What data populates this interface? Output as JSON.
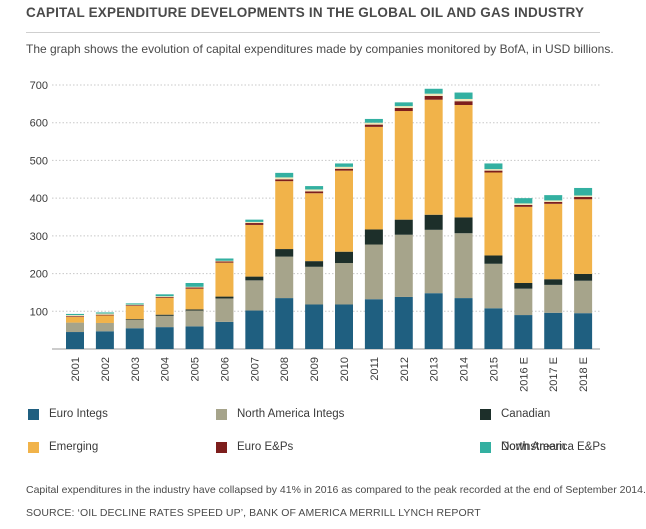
{
  "header": {
    "title": "CAPITAL EXPENDITURE DEVELOPMENTS IN THE GLOBAL OIL AND GAS INDUSTRY",
    "subtitle": "The graph shows the evolution of capital expenditures made by companies monitored by BofA, in USD billions."
  },
  "footer": {
    "note": "Capital expenditures in the industry have collapsed by 41% in 2016 as compared to the peak recorded at the end of September 2014.",
    "source": "SOURCE: ‘OIL DECLINE RATES SPEED UP’, BANK OF AMERICA MERRILL LYNCH REPORT"
  },
  "chart_data": {
    "type": "bar",
    "stacked": true,
    "title": "",
    "xlabel": "",
    "ylabel": "",
    "ylim": [
      0,
      700
    ],
    "yticks": [
      100,
      200,
      300,
      400,
      500,
      600,
      700
    ],
    "grid": true,
    "legend_position": "bottom",
    "categories": [
      "2001",
      "2002",
      "2003",
      "2004",
      "2005",
      "2006",
      "2007",
      "2008",
      "2009",
      "2010",
      "2011",
      "2012",
      "2013",
      "2014",
      "2015",
      "2016 E",
      "2017 E",
      "2018 E"
    ],
    "series": [
      {
        "name": "Euro Integs",
        "color": "#1f5f80",
        "values": [
          45,
          47,
          55,
          58,
          60,
          72,
          102,
          135,
          118,
          118,
          132,
          138,
          148,
          135,
          108,
          90,
          96,
          95
        ]
      },
      {
        "name": "North America Integs",
        "color": "#a6a48b",
        "values": [
          25,
          22,
          22,
          30,
          42,
          62,
          80,
          110,
          100,
          110,
          145,
          165,
          168,
          172,
          118,
          70,
          74,
          86
        ]
      },
      {
        "name": "Canadian",
        "color": "#1d2f2a",
        "values": [
          0,
          0,
          2,
          3,
          3,
          5,
          10,
          20,
          15,
          30,
          40,
          40,
          40,
          42,
          22,
          15,
          15,
          18
        ]
      },
      {
        "name": "Emerging",
        "color": "#f1b34a",
        "values": [
          15,
          20,
          35,
          45,
          55,
          90,
          137,
          180,
          180,
          215,
          272,
          288,
          305,
          298,
          220,
          202,
          200,
          198
        ]
      },
      {
        "name": "Euro E&Ps",
        "color": "#7d1e1c",
        "values": [
          2,
          2,
          2,
          2,
          3,
          3,
          5,
          5,
          5,
          5,
          6,
          8,
          10,
          10,
          5,
          5,
          5,
          6
        ]
      },
      {
        "name": "North America E&Ps",
        "color": "#f1e8b9",
        "values": [
          3,
          3,
          2,
          2,
          2,
          2,
          3,
          5,
          5,
          5,
          5,
          5,
          6,
          6,
          4,
          4,
          4,
          4
        ]
      },
      {
        "name": "Downstream",
        "color": "#33b0a1",
        "values": [
          3,
          3,
          3,
          5,
          10,
          6,
          6,
          12,
          9,
          9,
          10,
          10,
          13,
          17,
          15,
          14,
          14,
          20
        ]
      }
    ]
  }
}
